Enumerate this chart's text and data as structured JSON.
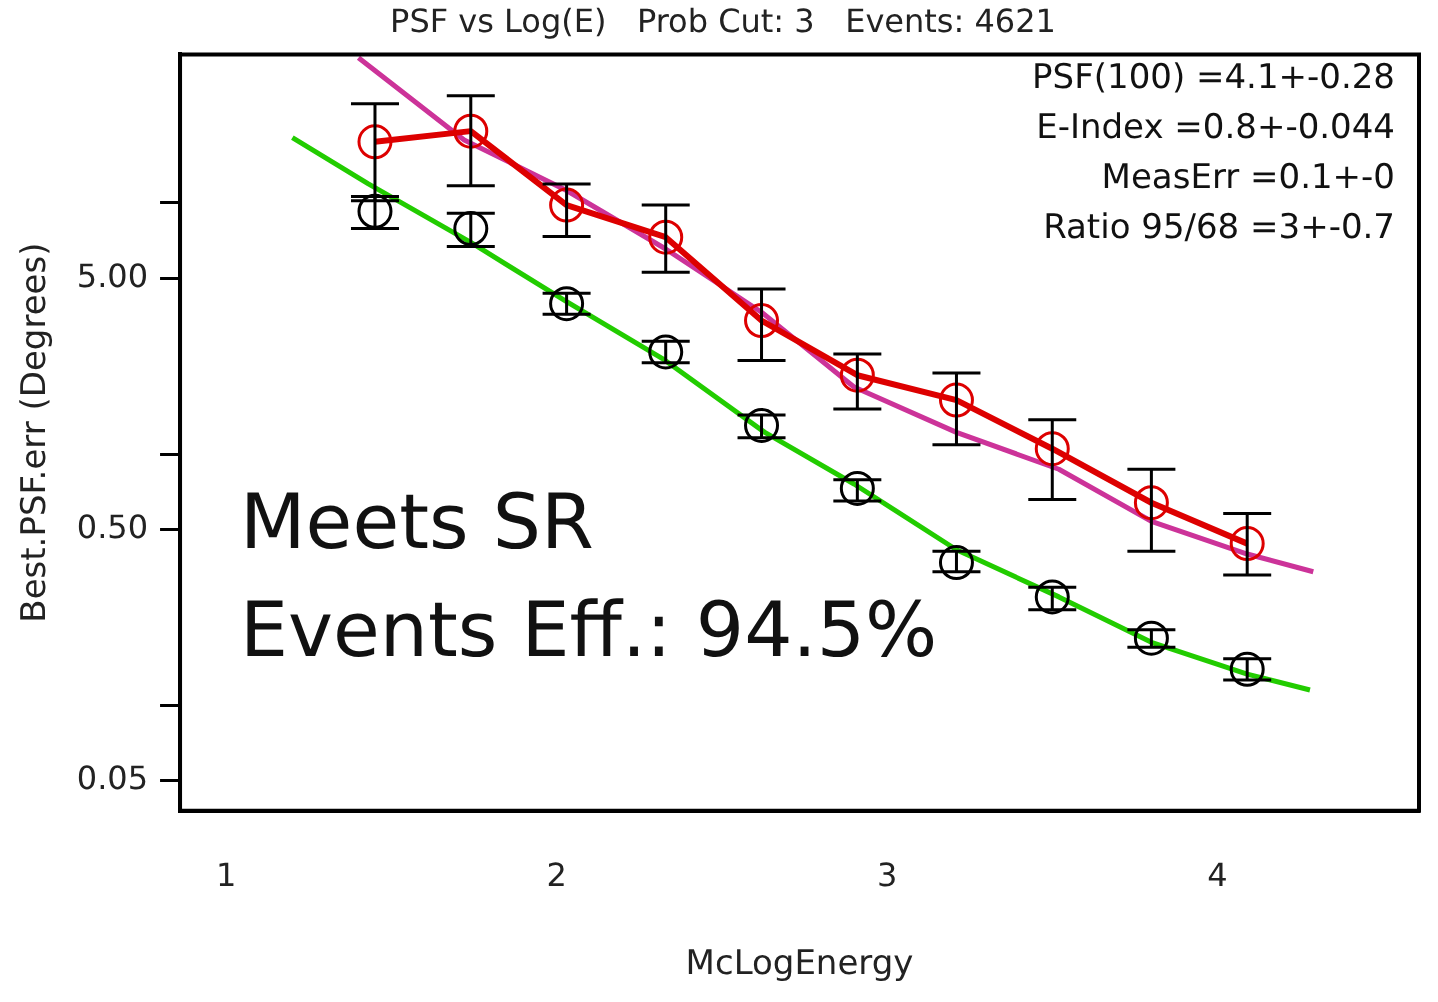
{
  "chart_data": {
    "type": "line",
    "title": "PSF vs Log(E)   Prob Cut: 3   Events: 4621",
    "xlabel": "McLogEnergy",
    "ylabel": "Best.PSF.err (Degrees)",
    "log": "y",
    "marker": "circle",
    "xlim": [
      0.86,
      4.61
    ],
    "xticks": [
      1,
      2,
      3,
      4
    ],
    "ylim": [
      0.038,
      39
    ],
    "yticks": [
      {
        "value": 0.05,
        "label": "0.05"
      },
      {
        "value": 0.1,
        "label": null
      },
      {
        "value": 0.5,
        "label": "0.50"
      },
      {
        "value": 1,
        "label": null
      },
      {
        "value": 5,
        "label": "5.00"
      },
      {
        "value": 10,
        "label": null
      }
    ],
    "series": [
      {
        "type": "line",
        "color": "#dd0000",
        "x": [
          1.45,
          1.74,
          2.03,
          2.33,
          2.62,
          2.91,
          3.21,
          3.5,
          3.8,
          4.09
        ],
        "values": [
          17.5,
          19.3,
          9.8,
          7.3,
          3.4,
          2.06,
          1.64,
          1.05,
          0.64,
          0.44
        ],
        "errors": [
          [
            10.2,
            24.8
          ],
          [
            11.7,
            26.7
          ],
          [
            7.35,
            11.9
          ],
          [
            5.3,
            9.8
          ],
          [
            2.36,
            4.54
          ],
          [
            1.51,
            2.5
          ],
          [
            1.09,
            2.1
          ],
          [
            0.66,
            1.37
          ],
          [
            0.41,
            0.87
          ],
          [
            0.33,
            0.58
          ]
        ]
      },
      {
        "type": "scatter",
        "color": "#000000",
        "x": [
          1.45,
          1.74,
          2.03,
          2.33,
          2.62,
          2.91,
          3.21,
          3.5,
          3.8,
          4.09
        ],
        "values": [
          9.26,
          7.9,
          3.97,
          2.55,
          1.3,
          0.73,
          0.37,
          0.27,
          0.185,
          0.139
        ],
        "errors": [
          [
            7.9,
            10.6
          ],
          [
            6.7,
            9.1
          ],
          [
            3.6,
            4.37
          ],
          [
            2.31,
            2.81
          ],
          [
            1.16,
            1.43
          ],
          [
            0.65,
            0.79
          ],
          [
            0.34,
            0.41
          ],
          [
            0.24,
            0.295
          ],
          [
            0.17,
            0.2
          ],
          [
            0.126,
            0.153
          ]
        ]
      },
      {
        "type": "line",
        "color": "#cc3399",
        "marker": "none",
        "x": [
          1.4,
          1.72,
          2.03,
          2.33,
          2.62,
          2.9,
          3.21,
          3.52,
          3.8,
          4.09,
          4.29
        ],
        "values": [
          37.8,
          17.8,
          11.2,
          6.55,
          3.67,
          1.85,
          1.22,
          0.87,
          0.54,
          0.4,
          0.34
        ]
      },
      {
        "type": "line",
        "color": "#22cc00",
        "marker": "none",
        "x": [
          1.2,
          1.43,
          1.74,
          2.03,
          2.32,
          2.63,
          2.9,
          3.21,
          3.52,
          3.8,
          4.09,
          4.28
        ],
        "values": [
          18.2,
          11.9,
          6.96,
          4.04,
          2.4,
          1.22,
          0.76,
          0.416,
          0.27,
          0.178,
          0.133,
          0.115
        ]
      }
    ],
    "annotations": [
      "PSF(100) =4.1+-0.28",
      "E-Index =0.8+-0.044",
      "MeasErr =0.1+-0",
      "Ratio 95/68 =3+-0.7",
      "Meets SR",
      "Events Eff.: 94.5%"
    ]
  }
}
